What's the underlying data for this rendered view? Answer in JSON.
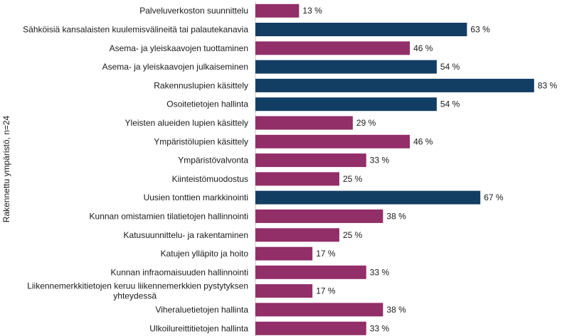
{
  "chart_data": {
    "type": "bar",
    "orientation": "horizontal",
    "ylabel": "Rakennettu ympäristö, n=24",
    "xlim": [
      0,
      100
    ],
    "value_suffix": " %",
    "colors": {
      "primary": "#922e68",
      "accent": "#123e63"
    },
    "categories": [
      "Palveluverkoston suunnittelu",
      "Sähköisiä kansalaisten kuulemisvälineitä tai palautekanavia",
      "Asema- ja yleiskaavojen tuottaminen",
      "Asema- ja yleiskaavojen julkaiseminen",
      "Rakennuslupien käsittely",
      "Osoitetietojen hallinta",
      "Yleisten alueiden lupien käsittely",
      "Ympäristölupien käsittely",
      "Ympäristövalvonta",
      "Kiinteistömuodostus",
      "Uusien tonttien markkinointi",
      "Kunnan omistamien tilatietojen hallinnointi",
      "Katusuunnittelu- ja rakentaminen",
      "Katujen ylläpito ja hoito",
      "Kunnan infraomaisuuden hallinnointi",
      "Liikennemerkkitietojen keruu liikennemerkkien pystytyksen yhteydessä",
      "Viheraluetietojen hallinta",
      "Ulkoilureittitietojen hallinta"
    ],
    "values": [
      13,
      63,
      46,
      54,
      83,
      54,
      29,
      46,
      33,
      25,
      67,
      38,
      25,
      17,
      33,
      17,
      38,
      33
    ],
    "highlight": [
      false,
      true,
      false,
      true,
      true,
      true,
      false,
      false,
      false,
      false,
      true,
      false,
      false,
      false,
      false,
      false,
      false,
      false
    ]
  }
}
